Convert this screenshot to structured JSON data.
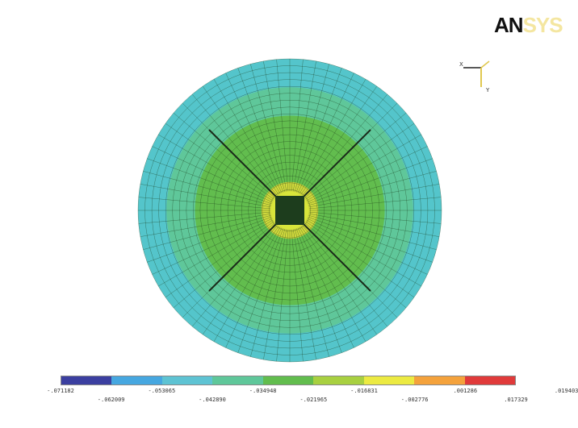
{
  "logo": {
    "part_a": "AN",
    "part_b": "SYS"
  },
  "triad": {
    "x_label": "X",
    "y_label": "Y"
  },
  "mesh": {
    "ring_colors": [
      "#54c5cb",
      "#54c5cb",
      "#54c5cb",
      "#5fc79a",
      "#5fc79a",
      "#5fc79a",
      "#62bd4e",
      "#62bd4e",
      "#62bd4e",
      "#62bd4e",
      "#62bd4e",
      "#62bd4e",
      "#62bd4e",
      "#cfd83c",
      "#d8e53b",
      "#2a5a2a"
    ],
    "line_color": "#1a3a1a"
  },
  "legend": {
    "colors": [
      "#3b3fa0",
      "#46a7e0",
      "#5ec3d3",
      "#5fc79a",
      "#62bd4e",
      "#a8d040",
      "#ecea42",
      "#f4a23c",
      "#e03a3a"
    ],
    "labels_top": [
      "-.071182",
      "-.053065",
      "-.034948",
      "-.016831",
      ".001286",
      ".019403"
    ],
    "labels_bottom": [
      "-.062009",
      "-.042890",
      "-.021965",
      "-.002776",
      ".017329"
    ]
  }
}
